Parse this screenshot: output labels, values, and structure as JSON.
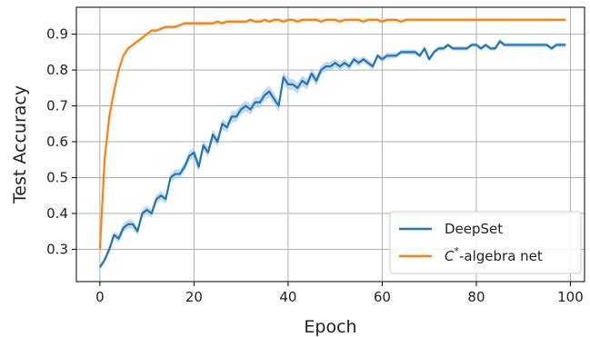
{
  "chart_data": {
    "type": "line",
    "title": "",
    "xlabel": "Epoch",
    "ylabel": "Test Accuracy",
    "xlim": [
      -5,
      103
    ],
    "ylim": [
      0.21,
      0.975
    ],
    "xticks": [
      0,
      20,
      40,
      60,
      80,
      100
    ],
    "xtick_labels": [
      "0",
      "20",
      "40",
      "60",
      "80",
      "100"
    ],
    "yticks": [
      0.3,
      0.4,
      0.5,
      0.6,
      0.7,
      0.8,
      0.9
    ],
    "ytick_labels": [
      "0.3",
      "0.4",
      "0.5",
      "0.6",
      "0.7",
      "0.8",
      "0.9"
    ],
    "grid": true,
    "legend": {
      "placement": "lower-right",
      "entries": [
        {
          "name": "DeepSet",
          "color": "#1f77b4"
        },
        {
          "name_prefix": "C",
          "name_sup": "*",
          "name_suffix": "-algebra net",
          "color": "#ff7f0e"
        }
      ]
    },
    "series": [
      {
        "name": "DeepSet",
        "color": "#1f77b4",
        "band_color": "#aec7e8",
        "x": [
          0,
          1,
          2,
          3,
          4,
          5,
          6,
          7,
          8,
          9,
          10,
          11,
          12,
          13,
          14,
          15,
          16,
          17,
          18,
          19,
          20,
          21,
          22,
          23,
          24,
          25,
          26,
          27,
          28,
          29,
          30,
          31,
          32,
          33,
          34,
          35,
          36,
          37,
          38,
          39,
          40,
          41,
          42,
          43,
          44,
          45,
          46,
          47,
          48,
          49,
          50,
          51,
          52,
          53,
          54,
          55,
          56,
          57,
          58,
          59,
          60,
          61,
          62,
          63,
          64,
          65,
          66,
          67,
          68,
          69,
          70,
          71,
          72,
          73,
          74,
          75,
          76,
          77,
          78,
          79,
          80,
          81,
          82,
          83,
          84,
          85,
          86,
          87,
          88,
          89,
          90,
          91,
          92,
          93,
          94,
          95,
          96,
          97,
          98,
          99
        ],
        "values": [
          0.25,
          0.27,
          0.3,
          0.34,
          0.33,
          0.36,
          0.37,
          0.37,
          0.35,
          0.4,
          0.41,
          0.4,
          0.44,
          0.45,
          0.44,
          0.5,
          0.51,
          0.51,
          0.53,
          0.56,
          0.57,
          0.53,
          0.59,
          0.57,
          0.62,
          0.6,
          0.65,
          0.64,
          0.67,
          0.67,
          0.69,
          0.7,
          0.69,
          0.71,
          0.71,
          0.73,
          0.74,
          0.72,
          0.7,
          0.78,
          0.76,
          0.76,
          0.75,
          0.77,
          0.76,
          0.79,
          0.77,
          0.8,
          0.81,
          0.81,
          0.82,
          0.81,
          0.82,
          0.81,
          0.83,
          0.82,
          0.83,
          0.82,
          0.81,
          0.84,
          0.83,
          0.84,
          0.84,
          0.84,
          0.85,
          0.85,
          0.85,
          0.85,
          0.84,
          0.86,
          0.83,
          0.85,
          0.86,
          0.86,
          0.87,
          0.86,
          0.86,
          0.86,
          0.86,
          0.87,
          0.87,
          0.86,
          0.87,
          0.86,
          0.86,
          0.88,
          0.87,
          0.87,
          0.87,
          0.87,
          0.87,
          0.87,
          0.87,
          0.87,
          0.87,
          0.87,
          0.86,
          0.87,
          0.87,
          0.87
        ],
        "band_halfwidth": [
          0.006,
          0.008,
          0.009,
          0.01,
          0.012,
          0.012,
          0.012,
          0.012,
          0.012,
          0.012,
          0.012,
          0.012,
          0.012,
          0.012,
          0.012,
          0.012,
          0.013,
          0.013,
          0.013,
          0.014,
          0.014,
          0.014,
          0.014,
          0.014,
          0.014,
          0.014,
          0.014,
          0.015,
          0.015,
          0.015,
          0.015,
          0.015,
          0.015,
          0.015,
          0.015,
          0.016,
          0.016,
          0.016,
          0.016,
          0.016,
          0.016,
          0.015,
          0.015,
          0.015,
          0.015,
          0.014,
          0.014,
          0.013,
          0.013,
          0.012,
          0.012,
          0.011,
          0.011,
          0.01,
          0.01,
          0.01,
          0.009,
          0.009,
          0.009,
          0.008,
          0.008,
          0.008,
          0.008,
          0.007,
          0.007,
          0.007,
          0.007,
          0.007,
          0.007,
          0.007,
          0.006,
          0.006,
          0.006,
          0.006,
          0.006,
          0.006,
          0.006,
          0.006,
          0.006,
          0.006,
          0.006,
          0.006,
          0.006,
          0.006,
          0.006,
          0.006,
          0.006,
          0.006,
          0.006,
          0.006,
          0.006,
          0.006,
          0.006,
          0.006,
          0.006,
          0.006,
          0.006,
          0.006,
          0.006,
          0.006
        ]
      },
      {
        "name": "C*-algebra net",
        "color": "#ff7f0e",
        "band_color": "#ffbb78",
        "x": [
          0,
          1,
          2,
          3,
          4,
          5,
          6,
          7,
          8,
          9,
          10,
          11,
          12,
          13,
          14,
          15,
          16,
          17,
          18,
          19,
          20,
          21,
          22,
          23,
          24,
          25,
          26,
          27,
          28,
          29,
          30,
          31,
          32,
          33,
          34,
          35,
          36,
          37,
          38,
          39,
          40,
          41,
          42,
          43,
          44,
          45,
          46,
          47,
          48,
          49,
          50,
          51,
          52,
          53,
          54,
          55,
          56,
          57,
          58,
          59,
          60,
          61,
          62,
          63,
          64,
          65,
          66,
          67,
          68,
          69,
          70,
          71,
          72,
          73,
          74,
          75,
          76,
          77,
          78,
          79,
          80,
          81,
          82,
          83,
          84,
          85,
          86,
          87,
          88,
          89,
          90,
          91,
          92,
          93,
          94,
          95,
          96,
          97,
          98,
          99
        ],
        "values": [
          0.3,
          0.55,
          0.67,
          0.74,
          0.8,
          0.84,
          0.86,
          0.87,
          0.88,
          0.89,
          0.9,
          0.91,
          0.91,
          0.915,
          0.92,
          0.92,
          0.92,
          0.925,
          0.93,
          0.93,
          0.93,
          0.93,
          0.93,
          0.93,
          0.93,
          0.935,
          0.93,
          0.935,
          0.935,
          0.935,
          0.935,
          0.935,
          0.94,
          0.935,
          0.935,
          0.94,
          0.935,
          0.94,
          0.94,
          0.935,
          0.94,
          0.94,
          0.935,
          0.94,
          0.94,
          0.94,
          0.94,
          0.935,
          0.94,
          0.94,
          0.94,
          0.935,
          0.94,
          0.94,
          0.94,
          0.94,
          0.935,
          0.94,
          0.94,
          0.94,
          0.935,
          0.94,
          0.94,
          0.94,
          0.935,
          0.94,
          0.94,
          0.94,
          0.94,
          0.94,
          0.94,
          0.94,
          0.94,
          0.94,
          0.94,
          0.94,
          0.94,
          0.94,
          0.94,
          0.94,
          0.94,
          0.94,
          0.94,
          0.94,
          0.94,
          0.94,
          0.94,
          0.94,
          0.94,
          0.94,
          0.94,
          0.94,
          0.94,
          0.94,
          0.94,
          0.94,
          0.94,
          0.94,
          0.94,
          0.94
        ],
        "band_halfwidth": [
          0.004,
          0.006,
          0.006,
          0.006,
          0.005,
          0.005,
          0.005,
          0.004,
          0.004,
          0.004,
          0.004,
          0.004,
          0.004,
          0.004,
          0.004,
          0.004,
          0.004,
          0.004,
          0.004,
          0.004,
          0.004,
          0.004,
          0.004,
          0.004,
          0.004,
          0.004,
          0.004,
          0.004,
          0.004,
          0.004,
          0.004,
          0.004,
          0.004,
          0.004,
          0.004,
          0.004,
          0.004,
          0.004,
          0.004,
          0.004,
          0.004,
          0.004,
          0.004,
          0.004,
          0.004,
          0.004,
          0.004,
          0.004,
          0.004,
          0.004,
          0.004,
          0.004,
          0.004,
          0.004,
          0.004,
          0.004,
          0.004,
          0.004,
          0.004,
          0.004,
          0.004,
          0.004,
          0.004,
          0.004,
          0.004,
          0.004,
          0.004,
          0.004,
          0.004,
          0.004,
          0.004,
          0.004,
          0.004,
          0.004,
          0.004,
          0.004,
          0.004,
          0.004,
          0.004,
          0.004,
          0.004,
          0.004,
          0.004,
          0.004,
          0.004,
          0.004,
          0.004,
          0.004,
          0.004,
          0.004,
          0.004,
          0.004,
          0.004,
          0.004,
          0.004,
          0.004,
          0.004,
          0.004,
          0.004,
          0.004
        ]
      }
    ]
  }
}
